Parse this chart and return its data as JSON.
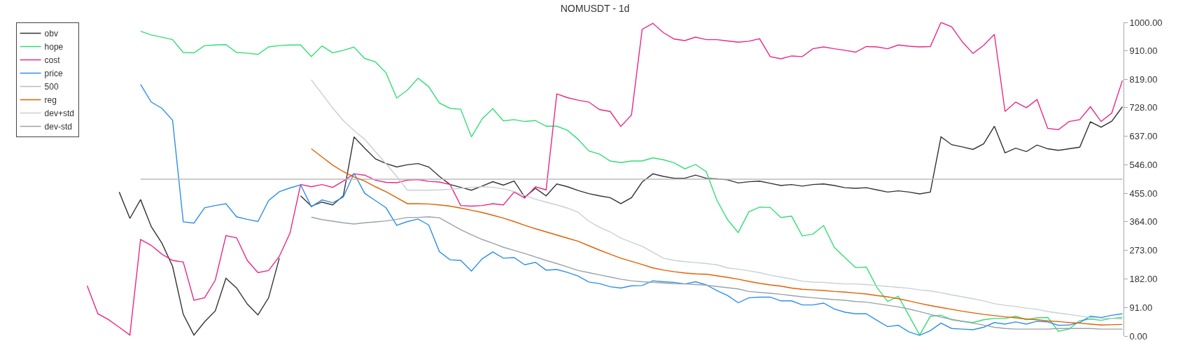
{
  "chart_data": {
    "type": "line",
    "title": "NOMUSDT - 1d",
    "categories": [
      null,
      null,
      null,
      null,
      null,
      null,
      null,
      null,
      null,
      null,
      null,
      null,
      null,
      null,
      null,
      null,
      null,
      null,
      null,
      null,
      null,
      null,
      null,
      null,
      null,
      null,
      null,
      null,
      null,
      null,
      null,
      null,
      null,
      null,
      null,
      null,
      null,
      null,
      null,
      null,
      null,
      null,
      null,
      null,
      null,
      null,
      null,
      null,
      null,
      null,
      null,
      null,
      null,
      null,
      null,
      null,
      null,
      null,
      null,
      null,
      null,
      null,
      null,
      null,
      null,
      null,
      null,
      null,
      null,
      null,
      null,
      null,
      null,
      null,
      null,
      null,
      null,
      null,
      null,
      null,
      null,
      null,
      null,
      null,
      null,
      null,
      null,
      null,
      null,
      null,
      null,
      null,
      null,
      null,
      null,
      null,
      null,
      null
    ],
    "series": [
      {
        "name": "obv",
        "color": "#333333",
        "values": [
          null,
          null,
          null,
          459,
          375,
          435,
          349,
          296,
          222,
          69,
          3,
          45,
          80,
          184,
          153,
          102,
          67,
          122,
          248,
          null,
          447,
          414,
          427,
          418,
          447,
          635,
          599,
          565,
          550,
          539,
          546,
          550,
          539,
          509,
          483,
          474,
          465,
          478,
          492,
          481,
          494,
          443,
          471,
          447,
          485,
          476,
          464,
          454,
          447,
          441,
          422,
          441,
          491,
          517,
          509,
          503,
          503,
          513,
          503,
          501,
          498,
          488,
          492,
          494,
          487,
          480,
          483,
          478,
          483,
          485,
          480,
          473,
          471,
          473,
          466,
          459,
          463,
          459,
          453,
          459,
          635,
          610,
          603,
          595,
          613,
          669,
          584,
          599,
          588,
          609,
          597,
          592,
          597,
          602,
          683,
          666,
          685,
          731
        ]
      },
      {
        "name": "hope",
        "color": "#33dd77",
        "values": [
          null,
          null,
          null,
          null,
          null,
          972,
          960,
          953,
          945,
          904,
          903,
          926,
          928,
          929,
          904,
          902,
          898,
          922,
          926,
          928,
          928,
          891,
          925,
          903,
          911,
          921,
          885,
          874,
          839,
          759,
          784,
          822,
          795,
          743,
          726,
          723,
          635,
          692,
          725,
          686,
          690,
          684,
          687,
          669,
          669,
          656,
          627,
          590,
          580,
          558,
          553,
          558,
          558,
          568,
          562,
          552,
          533,
          547,
          524,
          433,
          371,
          330,
          396,
          411,
          410,
          378,
          382,
          319,
          325,
          352,
          283,
          250,
          218,
          220,
          155,
          110,
          127,
          65,
          3,
          63,
          66,
          52,
          47,
          43,
          52,
          56,
          56,
          63,
          52,
          58,
          59,
          15,
          22,
          49,
          54,
          50,
          56,
          59
        ]
      },
      {
        "name": "cost",
        "color": "#e8288a",
        "values": [
          160,
          71,
          52,
          28,
          3,
          308,
          289,
          261,
          241,
          236,
          114,
          122,
          178,
          320,
          313,
          241,
          202,
          209,
          254,
          328,
          483,
          476,
          483,
          474,
          494,
          517,
          513,
          497,
          490,
          489,
          497,
          499,
          493,
          491,
          483,
          416,
          414,
          416,
          422,
          418,
          459,
          440,
          476,
          466,
          772,
          760,
          752,
          746,
          722,
          716,
          668,
          705,
          978,
          997,
          967,
          947,
          942,
          953,
          945,
          945,
          941,
          937,
          940,
          948,
          891,
          884,
          893,
          891,
          916,
          922,
          916,
          911,
          905,
          923,
          922,
          916,
          928,
          924,
          922,
          923,
          1000,
          986,
          938,
          901,
          927,
          962,
          716,
          746,
          728,
          754,
          662,
          658,
          684,
          690,
          731,
          684,
          711,
          815
        ]
      },
      {
        "name": "price",
        "color": "#2f8fe8",
        "values": [
          null,
          null,
          null,
          null,
          null,
          802,
          746,
          726,
          688,
          364,
          360,
          409,
          416,
          422,
          380,
          372,
          365,
          432,
          460,
          472,
          482,
          412,
          434,
          425,
          443,
          519,
          455,
          432,
          409,
          353,
          365,
          373,
          354,
          269,
          243,
          241,
          207,
          246,
          268,
          248,
          250,
          227,
          235,
          210,
          212,
          203,
          191,
          172,
          167,
          157,
          153,
          160,
          161,
          176,
          173,
          171,
          166,
          173,
          163,
          145,
          129,
          106,
          122,
          124,
          124,
          112,
          112,
          99,
          99,
          105,
          86,
          76,
          71,
          71,
          50,
          30,
          34,
          13,
          2,
          17,
          41,
          24,
          22,
          20,
          28,
          43,
          38,
          45,
          38,
          47,
          45,
          34,
          35,
          43,
          63,
          59,
          66,
          71
        ]
      },
      {
        "name": "500",
        "color": "#bbbbbb",
        "values": [
          null,
          null,
          null,
          null,
          null,
          500,
          500,
          500,
          500,
          500,
          500,
          500,
          500,
          500,
          500,
          500,
          500,
          500,
          500,
          500,
          500,
          500,
          500,
          500,
          500,
          500,
          500,
          500,
          500,
          500,
          500,
          500,
          500,
          500,
          500,
          500,
          500,
          500,
          500,
          500,
          500,
          500,
          500,
          500,
          500,
          500,
          500,
          500,
          500,
          500,
          500,
          500,
          500,
          500,
          500,
          500,
          500,
          500,
          500,
          500,
          500,
          500,
          500,
          500,
          500,
          500,
          500,
          500,
          500,
          500,
          500,
          500,
          500,
          500,
          500,
          500,
          500,
          500,
          500,
          500,
          500,
          500,
          500,
          500,
          500,
          500,
          500,
          500,
          500,
          500,
          500,
          500,
          500,
          500,
          500,
          500,
          500,
          500
        ]
      },
      {
        "name": "reg",
        "color": "#e06000",
        "values": [
          null,
          null,
          null,
          null,
          null,
          null,
          null,
          null,
          null,
          null,
          null,
          null,
          null,
          null,
          null,
          null,
          null,
          null,
          null,
          null,
          null,
          597,
          571,
          545,
          524,
          507,
          494,
          476,
          460,
          441,
          422,
          422,
          421,
          418,
          414,
          408,
          401,
          394,
          385,
          376,
          365,
          353,
          342,
          332,
          322,
          312,
          302,
          288,
          274,
          261,
          248,
          238,
          228,
          217,
          210,
          205,
          201,
          198,
          197,
          192,
          187,
          181,
          174,
          168,
          163,
          159,
          153,
          149,
          147,
          145,
          142,
          140,
          137,
          134,
          129,
          125,
          119,
          112,
          104,
          97,
          91,
          85,
          79,
          74,
          69,
          65,
          61,
          58,
          54,
          52,
          48,
          46,
          43,
          41,
          38,
          35,
          36,
          37
        ]
      },
      {
        "name": "dev+std",
        "color": "#c7cfd6",
        "values": [
          null,
          null,
          null,
          null,
          null,
          null,
          null,
          null,
          null,
          null,
          null,
          null,
          null,
          null,
          null,
          null,
          null,
          null,
          null,
          null,
          null,
          817,
          772,
          727,
          687,
          655,
          627,
          588,
          549,
          509,
          465,
          465,
          465,
          466,
          468,
          471,
          474,
          476,
          474,
          469,
          461,
          448,
          436,
          427,
          418,
          408,
          395,
          366,
          347,
          332,
          312,
          299,
          286,
          267,
          248,
          241,
          237,
          234,
          231,
          227,
          217,
          213,
          208,
          202,
          194,
          188,
          182,
          175,
          172,
          171,
          168,
          166,
          166,
          164,
          161,
          158,
          155,
          152,
          147,
          144,
          138,
          131,
          125,
          119,
          112,
          103,
          98,
          94,
          89,
          85,
          78,
          73,
          69,
          64,
          59,
          57,
          56,
          54
        ]
      },
      {
        "name": "dev-std",
        "color": "#98a3ad",
        "values": [
          null,
          null,
          null,
          null,
          null,
          null,
          null,
          null,
          null,
          null,
          null,
          null,
          null,
          null,
          null,
          null,
          null,
          null,
          null,
          null,
          null,
          379,
          371,
          366,
          361,
          357,
          361,
          364,
          367,
          372,
          378,
          378,
          380,
          377,
          358,
          339,
          323,
          308,
          296,
          283,
          273,
          263,
          252,
          241,
          231,
          220,
          209,
          202,
          195,
          188,
          181,
          176,
          173,
          171,
          169,
          167,
          166,
          164,
          162,
          158,
          154,
          150,
          142,
          139,
          136,
          133,
          129,
          125,
          122,
          119,
          116,
          114,
          110,
          108,
          103,
          98,
          93,
          86,
          78,
          69,
          60,
          53,
          47,
          41,
          35,
          28,
          24,
          22,
          22,
          22,
          22,
          24,
          24,
          24,
          24,
          22,
          22,
          22
        ]
      }
    ],
    "ylim": [
      0,
      1000
    ],
    "yticks": [
      {
        "value": 0,
        "label": "0.00"
      },
      {
        "value": 91,
        "label": "91.00"
      },
      {
        "value": 182,
        "label": "182.00"
      },
      {
        "value": 273,
        "label": "273.00"
      },
      {
        "value": 364,
        "label": "364.00"
      },
      {
        "value": 455,
        "label": "455.00"
      },
      {
        "value": 546,
        "label": "546.00"
      },
      {
        "value": 637,
        "label": "637.00"
      },
      {
        "value": 728,
        "label": "728.00"
      },
      {
        "value": 819,
        "label": "819.00"
      },
      {
        "value": 910,
        "label": "910.00"
      },
      {
        "value": 1000,
        "label": "1000.00"
      }
    ],
    "tick_labels": "y",
    "grid": false,
    "legend": "top left",
    "marker": "none",
    "line_style": "solid"
  }
}
